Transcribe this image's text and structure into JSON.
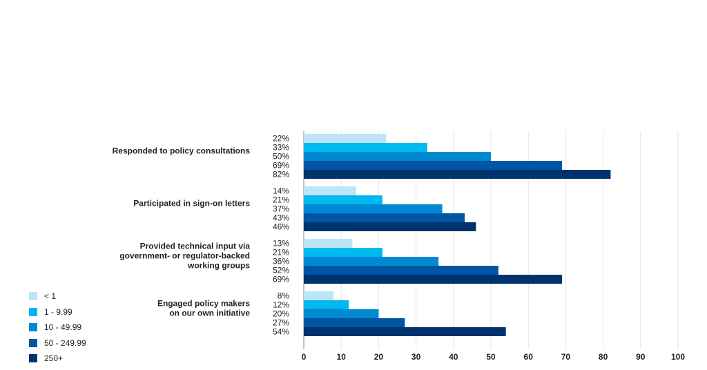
{
  "chart_data": {
    "type": "bar",
    "orientation": "horizontal",
    "categories": [
      "Responded to policy consultations",
      "Participated in sign-on letters",
      "Provided technical input via government- or regulator-backed working groups",
      "Engaged policy makers on our own initiative"
    ],
    "category_lines": [
      [
        "Responded to policy consultations"
      ],
      [
        "Participated in sign-on letters"
      ],
      [
        "Provided technical input via",
        "government- or regulator-backed",
        "working groups"
      ],
      [
        "Engaged policy makers",
        "on our own initiative"
      ]
    ],
    "series": [
      {
        "name": "< 1",
        "color": "#bde5f8",
        "values": [
          22,
          14,
          13,
          8
        ]
      },
      {
        "name": "1 - 9.99",
        "color": "#00b8f0",
        "values": [
          33,
          21,
          21,
          12
        ]
      },
      {
        "name": "10 - 49.99",
        "color": "#0089d0",
        "values": [
          50,
          37,
          36,
          20
        ]
      },
      {
        "name": "50 - 249.99",
        "color": "#0055a5",
        "values": [
          69,
          43,
          52,
          27
        ]
      },
      {
        "name": "250+",
        "color": "#00336e",
        "values": [
          82,
          46,
          69,
          54
        ]
      }
    ],
    "data_labels": [
      [
        "22%",
        "33%",
        "50%",
        "69%",
        "82%"
      ],
      [
        "14%",
        "21%",
        "37%",
        "43%",
        "46%"
      ],
      [
        "13%",
        "21%",
        "36%",
        "52%",
        "69%"
      ],
      [
        "8%",
        "12%",
        "20%",
        "27%",
        "54%"
      ]
    ],
    "xlim": [
      0,
      100
    ],
    "xticks": [
      "0",
      "10",
      "20",
      "30",
      "40",
      "50",
      "60",
      "70",
      "80",
      "90",
      "100"
    ],
    "grid": true,
    "legend_position": "bottom-left"
  }
}
